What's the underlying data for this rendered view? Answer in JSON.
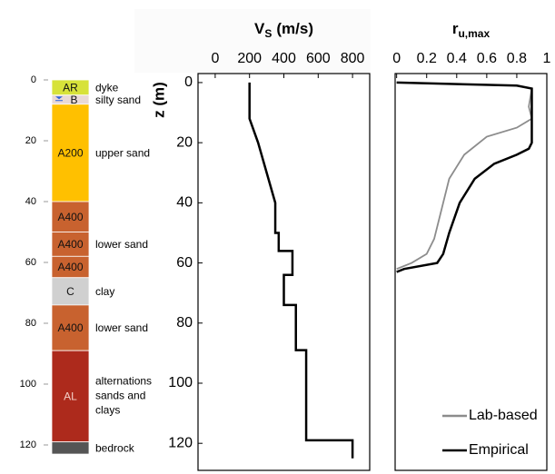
{
  "chart_data": [
    {
      "type": "column",
      "ylim": [
        0,
        120
      ],
      "yticks": [
        0,
        20,
        40,
        60,
        80,
        100,
        120
      ],
      "layers": [
        {
          "label": "AR",
          "color": "#d7e23a",
          "top": 0,
          "bottom": 5,
          "description": "dyke"
        },
        {
          "label": "B",
          "color": "#e9d9d6",
          "top": 5,
          "bottom": 8,
          "description": "silty sand"
        },
        {
          "label": "A200",
          "color": "#ffc000",
          "top": 8,
          "bottom": 40,
          "description": "upper sand"
        },
        {
          "label": "A400",
          "color": "#c8622f",
          "top": 40,
          "bottom": 50
        },
        {
          "label": "A400",
          "color": "#c8622f",
          "top": 50,
          "bottom": 58,
          "description": "lower sand"
        },
        {
          "label": "A400",
          "color": "#c8622f",
          "top": 58,
          "bottom": 65
        },
        {
          "label": "C",
          "color": "#d0d0d0",
          "top": 65,
          "bottom": 74,
          "description": "clay"
        },
        {
          "label": "A400",
          "color": "#c8622f",
          "top": 74,
          "bottom": 89,
          "description": "lower sand"
        },
        {
          "label": "AL",
          "color": "#ad2a1c",
          "top": 89,
          "bottom": 119,
          "description": [
            "alternations",
            "sands and",
            "clays"
          ]
        },
        {
          "color": "#555555",
          "top": 119,
          "bottom": 123,
          "description": "bedrock"
        }
      ]
    },
    {
      "type": "line",
      "title": "V",
      "title_sub": "S",
      "title_unit": "(m/s)",
      "y_label": "z (m)",
      "xlim": [
        -100,
        900
      ],
      "xticks": [
        0,
        200,
        400,
        600,
        800
      ],
      "ylim": [
        -3,
        129
      ],
      "yticks": [
        0,
        20,
        40,
        60,
        80,
        100,
        120
      ],
      "series": [
        {
          "color": "#000000",
          "values": [
            200,
            200,
            250,
            300,
            350,
            350,
            370,
            370,
            450,
            450,
            400,
            400,
            470,
            470,
            530,
            530,
            800,
            800
          ],
          "depth": [
            0,
            12,
            20,
            30,
            40,
            50,
            50,
            56,
            56,
            64,
            64,
            74,
            74,
            89,
            89,
            119,
            119,
            125
          ]
        }
      ]
    },
    {
      "type": "line",
      "title": "r",
      "title_sub": "u,max",
      "xlim": [
        -0.01,
        1
      ],
      "xticks": [
        0,
        0.2,
        0.4,
        0.6,
        0.8,
        1
      ],
      "ylim": [
        -3,
        129
      ],
      "legend": "lower right",
      "series": [
        {
          "name": "Lab-based",
          "color": "#8c8c8c",
          "values": [
            0,
            0.8,
            0.9,
            0.88,
            0.9,
            0.8,
            0.6,
            0.45,
            0.35,
            0.3,
            0.25,
            0.2,
            0.1,
            0
          ],
          "depth": [
            0,
            1,
            2,
            8,
            12,
            15,
            18,
            24,
            32,
            42,
            52,
            57,
            60,
            62
          ]
        },
        {
          "name": "Empirical",
          "color": "#000000",
          "values": [
            0,
            0.8,
            0.9,
            0.9,
            0.88,
            0.8,
            0.65,
            0.52,
            0.42,
            0.35,
            0.31,
            0.27,
            0.05,
            0
          ],
          "depth": [
            0,
            1,
            2,
            20,
            22,
            24,
            27,
            32,
            40,
            50,
            57,
            60,
            62,
            63
          ]
        }
      ]
    }
  ]
}
